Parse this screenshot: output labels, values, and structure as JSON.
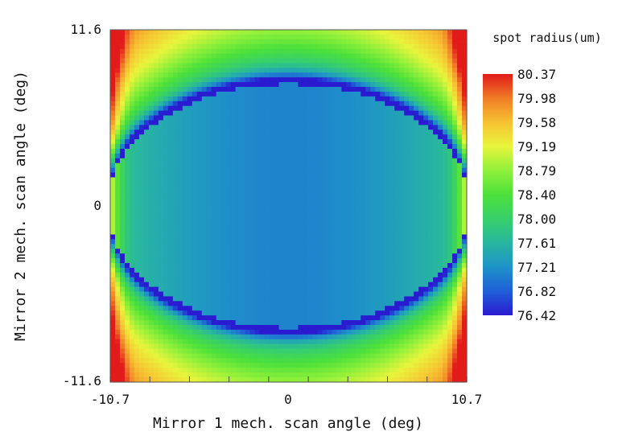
{
  "chart_data": {
    "type": "heatmap",
    "title": "",
    "xlabel": "Mirror 1 mech. scan angle (deg)",
    "ylabel": "Mirror 2 mech. scan angle (deg)",
    "xlim": [
      -10.7,
      10.7
    ],
    "ylim": [
      -11.6,
      11.6
    ],
    "x_ticks": [
      -10.7,
      0,
      10.7
    ],
    "x_tick_labels": [
      "-10.7",
      "0",
      "10.7"
    ],
    "y_ticks": [
      -11.6,
      0,
      11.6
    ],
    "y_tick_labels": [
      "-11.6",
      "0",
      "11.6"
    ],
    "colorbar": {
      "label": "spot radius(um)",
      "min": 76.42,
      "max": 80.37,
      "tick_labels": [
        "80.37",
        "79.98",
        "79.58",
        "79.19",
        "78.79",
        "78.40",
        "78.00",
        "77.61",
        "77.21",
        "76.82",
        "76.42"
      ],
      "colormap": "rainbow",
      "colors": [
        "#2a1ad0",
        "#1f5fd8",
        "#1e93c8",
        "#28b6a0",
        "#37d06a",
        "#4ce03a",
        "#8ff03a",
        "#e8f53c",
        "#f7c232",
        "#f07c26",
        "#e11a1a"
      ]
    },
    "description_values": {
      "center": 77.2,
      "dark_band_center": 76.42,
      "corners": 80.37
    }
  }
}
